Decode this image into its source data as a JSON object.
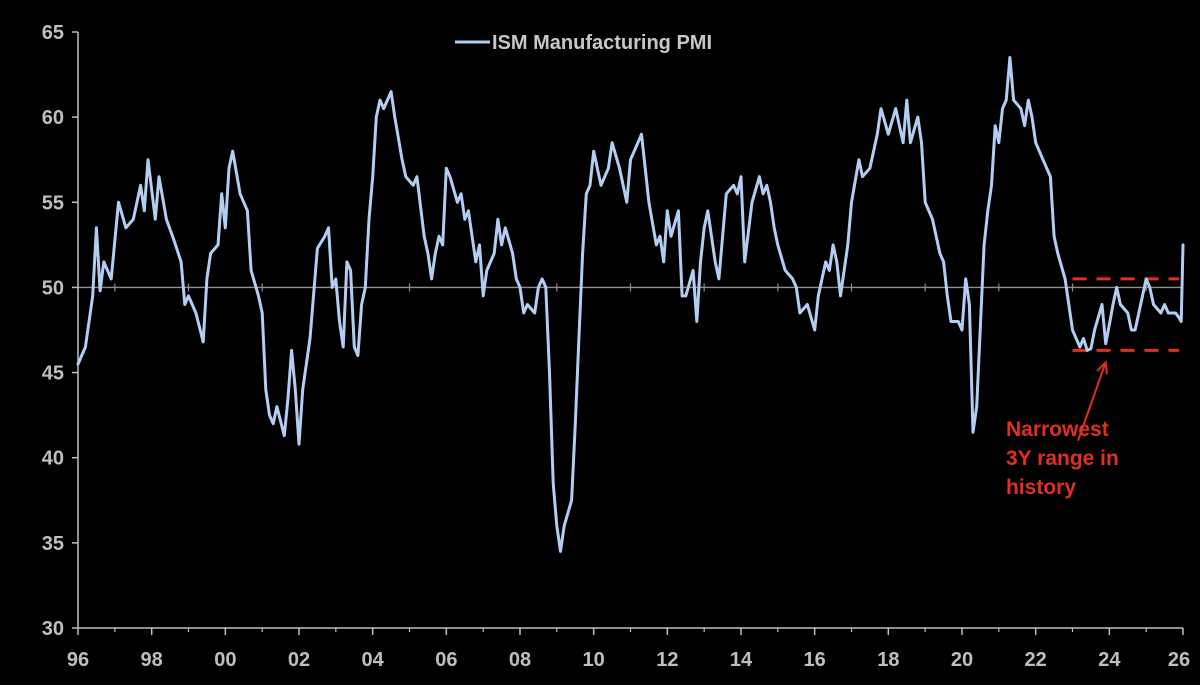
{
  "chart_data": {
    "type": "line",
    "title": "",
    "xlabel": "",
    "ylabel": "",
    "xlim": [
      1996,
      2026
    ],
    "ylim": [
      30,
      65
    ],
    "x_ticks": [
      "96",
      "98",
      "00",
      "02",
      "04",
      "06",
      "08",
      "10",
      "12",
      "14",
      "16",
      "18",
      "20",
      "22",
      "24",
      "26"
    ],
    "y_ticks": [
      "30",
      "35",
      "40",
      "45",
      "50",
      "55",
      "60",
      "65"
    ],
    "reference_line": 50,
    "legend_position": "top-center",
    "series": [
      {
        "name": "ISM Manufacturing PMI",
        "color": "#b4cdf2",
        "points": [
          [
            1996.0,
            45.5
          ],
          [
            1996.2,
            46.5
          ],
          [
            1996.4,
            49.5
          ],
          [
            1996.5,
            53.5
          ],
          [
            1996.6,
            49.8
          ],
          [
            1996.7,
            51.5
          ],
          [
            1996.9,
            50.5
          ],
          [
            1997.1,
            55.0
          ],
          [
            1997.3,
            53.5
          ],
          [
            1997.5,
            54.0
          ],
          [
            1997.7,
            56.0
          ],
          [
            1997.8,
            54.5
          ],
          [
            1997.9,
            57.5
          ],
          [
            1998.1,
            54.0
          ],
          [
            1998.2,
            56.5
          ],
          [
            1998.4,
            54.0
          ],
          [
            1998.6,
            52.8
          ],
          [
            1998.8,
            51.5
          ],
          [
            1998.9,
            49.0
          ],
          [
            1999.0,
            49.5
          ],
          [
            1999.2,
            48.5
          ],
          [
            1999.4,
            46.8
          ],
          [
            1999.5,
            50.5
          ],
          [
            1999.6,
            52.0
          ],
          [
            1999.8,
            52.5
          ],
          [
            1999.9,
            55.5
          ],
          [
            2000.0,
            53.5
          ],
          [
            2000.1,
            57.0
          ],
          [
            2000.2,
            58.0
          ],
          [
            2000.4,
            55.5
          ],
          [
            2000.6,
            54.5
          ],
          [
            2000.7,
            51.0
          ],
          [
            2000.9,
            49.5
          ],
          [
            2001.0,
            48.5
          ],
          [
            2001.1,
            44.0
          ],
          [
            2001.2,
            42.5
          ],
          [
            2001.3,
            42.0
          ],
          [
            2001.4,
            43.0
          ],
          [
            2001.6,
            41.3
          ],
          [
            2001.7,
            43.5
          ],
          [
            2001.8,
            46.3
          ],
          [
            2001.9,
            44.0
          ],
          [
            2002.0,
            40.8
          ],
          [
            2002.1,
            44.0
          ],
          [
            2002.3,
            47.0
          ],
          [
            2002.5,
            52.3
          ],
          [
            2002.7,
            53.0
          ],
          [
            2002.8,
            53.5
          ],
          [
            2002.9,
            50.0
          ],
          [
            2003.0,
            50.5
          ],
          [
            2003.1,
            48.0
          ],
          [
            2003.2,
            46.5
          ],
          [
            2003.3,
            51.5
          ],
          [
            2003.4,
            51.0
          ],
          [
            2003.5,
            46.5
          ],
          [
            2003.6,
            46.0
          ],
          [
            2003.7,
            49.0
          ],
          [
            2003.8,
            50.0
          ],
          [
            2003.9,
            54.0
          ],
          [
            2004.0,
            56.5
          ],
          [
            2004.1,
            60.0
          ],
          [
            2004.2,
            61.0
          ],
          [
            2004.3,
            60.5
          ],
          [
            2004.4,
            61.0
          ],
          [
            2004.5,
            61.5
          ],
          [
            2004.6,
            60.0
          ],
          [
            2004.8,
            57.5
          ],
          [
            2004.9,
            56.5
          ],
          [
            2005.1,
            56.0
          ],
          [
            2005.2,
            56.5
          ],
          [
            2005.4,
            53.0
          ],
          [
            2005.5,
            52.0
          ],
          [
            2005.6,
            50.5
          ],
          [
            2005.7,
            52.0
          ],
          [
            2005.8,
            53.0
          ],
          [
            2005.9,
            52.5
          ],
          [
            2006.0,
            57.0
          ],
          [
            2006.1,
            56.5
          ],
          [
            2006.3,
            55.0
          ],
          [
            2006.4,
            55.5
          ],
          [
            2006.5,
            54.0
          ],
          [
            2006.6,
            54.5
          ],
          [
            2006.8,
            51.5
          ],
          [
            2006.9,
            52.5
          ],
          [
            2007.0,
            49.5
          ],
          [
            2007.1,
            51.0
          ],
          [
            2007.3,
            52.0
          ],
          [
            2007.4,
            54.0
          ],
          [
            2007.5,
            52.5
          ],
          [
            2007.6,
            53.5
          ],
          [
            2007.8,
            52.0
          ],
          [
            2007.9,
            50.5
          ],
          [
            2008.0,
            50.0
          ],
          [
            2008.1,
            48.5
          ],
          [
            2008.2,
            49.0
          ],
          [
            2008.4,
            48.5
          ],
          [
            2008.5,
            50.0
          ],
          [
            2008.6,
            50.5
          ],
          [
            2008.7,
            50.0
          ],
          [
            2008.8,
            45.0
          ],
          [
            2008.9,
            38.5
          ],
          [
            2009.0,
            36.0
          ],
          [
            2009.1,
            34.5
          ],
          [
            2009.2,
            36.0
          ],
          [
            2009.4,
            37.5
          ],
          [
            2009.5,
            42.0
          ],
          [
            2009.6,
            47.0
          ],
          [
            2009.7,
            52.0
          ],
          [
            2009.8,
            55.5
          ],
          [
            2009.9,
            56.0
          ],
          [
            2010.0,
            58.0
          ],
          [
            2010.2,
            56.0
          ],
          [
            2010.4,
            57.0
          ],
          [
            2010.5,
            58.5
          ],
          [
            2010.7,
            57.0
          ],
          [
            2010.9,
            55.0
          ],
          [
            2011.0,
            57.5
          ],
          [
            2011.2,
            58.5
          ],
          [
            2011.3,
            59.0
          ],
          [
            2011.5,
            55.0
          ],
          [
            2011.7,
            52.5
          ],
          [
            2011.8,
            53.0
          ],
          [
            2011.9,
            51.5
          ],
          [
            2012.0,
            54.5
          ],
          [
            2012.1,
            53.0
          ],
          [
            2012.3,
            54.5
          ],
          [
            2012.4,
            49.5
          ],
          [
            2012.5,
            49.5
          ],
          [
            2012.7,
            51.0
          ],
          [
            2012.8,
            48.0
          ],
          [
            2012.9,
            51.5
          ],
          [
            2013.0,
            53.5
          ],
          [
            2013.1,
            54.5
          ],
          [
            2013.3,
            51.5
          ],
          [
            2013.4,
            50.5
          ],
          [
            2013.6,
            55.5
          ],
          [
            2013.8,
            56.0
          ],
          [
            2013.9,
            55.5
          ],
          [
            2014.0,
            56.5
          ],
          [
            2014.1,
            51.5
          ],
          [
            2014.3,
            55.0
          ],
          [
            2014.5,
            56.5
          ],
          [
            2014.6,
            55.5
          ],
          [
            2014.7,
            56.0
          ],
          [
            2014.8,
            55.0
          ],
          [
            2014.9,
            53.5
          ],
          [
            2015.0,
            52.5
          ],
          [
            2015.2,
            51.0
          ],
          [
            2015.4,
            50.5
          ],
          [
            2015.5,
            50.0
          ],
          [
            2015.6,
            48.5
          ],
          [
            2015.8,
            49.0
          ],
          [
            2016.0,
            47.5
          ],
          [
            2016.1,
            49.5
          ],
          [
            2016.3,
            51.5
          ],
          [
            2016.4,
            51.0
          ],
          [
            2016.5,
            52.5
          ],
          [
            2016.6,
            51.5
          ],
          [
            2016.7,
            49.5
          ],
          [
            2016.9,
            52.5
          ],
          [
            2017.0,
            55.0
          ],
          [
            2017.2,
            57.5
          ],
          [
            2017.3,
            56.5
          ],
          [
            2017.5,
            57.0
          ],
          [
            2017.7,
            59.0
          ],
          [
            2017.8,
            60.5
          ],
          [
            2018.0,
            59.0
          ],
          [
            2018.2,
            60.5
          ],
          [
            2018.4,
            58.5
          ],
          [
            2018.5,
            61.0
          ],
          [
            2018.6,
            58.5
          ],
          [
            2018.8,
            60.0
          ],
          [
            2018.9,
            58.5
          ],
          [
            2019.0,
            55.0
          ],
          [
            2019.2,
            54.0
          ],
          [
            2019.4,
            52.0
          ],
          [
            2019.5,
            51.5
          ],
          [
            2019.6,
            49.5
          ],
          [
            2019.7,
            48.0
          ],
          [
            2019.9,
            48.0
          ],
          [
            2020.0,
            47.5
          ],
          [
            2020.1,
            50.5
          ],
          [
            2020.2,
            49.0
          ],
          [
            2020.3,
            41.5
          ],
          [
            2020.4,
            43.0
          ],
          [
            2020.6,
            52.5
          ],
          [
            2020.7,
            54.5
          ],
          [
            2020.8,
            56.0
          ],
          [
            2020.9,
            59.5
          ],
          [
            2021.0,
            58.5
          ],
          [
            2021.1,
            60.5
          ],
          [
            2021.2,
            61.0
          ],
          [
            2021.3,
            63.5
          ],
          [
            2021.4,
            61.0
          ],
          [
            2021.6,
            60.5
          ],
          [
            2021.7,
            59.5
          ],
          [
            2021.8,
            61.0
          ],
          [
            2021.9,
            60.0
          ],
          [
            2022.0,
            58.5
          ],
          [
            2022.2,
            57.5
          ],
          [
            2022.4,
            56.5
          ],
          [
            2022.5,
            53.0
          ],
          [
            2022.6,
            52.0
          ],
          [
            2022.8,
            50.5
          ],
          [
            2022.9,
            49.0
          ],
          [
            2023.0,
            47.5
          ],
          [
            2023.1,
            47.0
          ],
          [
            2023.2,
            46.5
          ],
          [
            2023.3,
            47.0
          ],
          [
            2023.4,
            46.3
          ],
          [
            2023.5,
            46.4
          ],
          [
            2023.6,
            47.5
          ],
          [
            2023.8,
            49.0
          ],
          [
            2023.9,
            46.7
          ],
          [
            2024.0,
            47.8
          ],
          [
            2024.1,
            49.0
          ],
          [
            2024.2,
            50.0
          ],
          [
            2024.3,
            49.0
          ],
          [
            2024.5,
            48.5
          ],
          [
            2024.6,
            47.5
          ],
          [
            2024.7,
            47.5
          ],
          [
            2024.8,
            48.5
          ],
          [
            2024.9,
            49.5
          ],
          [
            2025.0,
            50.5
          ],
          [
            2025.1,
            50.0
          ],
          [
            2025.2,
            49.0
          ],
          [
            2025.4,
            48.5
          ],
          [
            2025.5,
            49.0
          ],
          [
            2025.6,
            48.5
          ],
          [
            2025.8,
            48.5
          ],
          [
            2025.9,
            48.2
          ],
          [
            2025.95,
            48.0
          ],
          [
            2026.0,
            52.5
          ]
        ]
      }
    ],
    "range_band": {
      "x_start": 2023.0,
      "x_end": 2026.0,
      "upper": 50.5,
      "lower": 46.3,
      "color": "#e0301e"
    },
    "annotation": {
      "lines": [
        "Narrowest",
        "3Y range in",
        "history"
      ],
      "color": "#e0301e",
      "arrow_target": [
        2023.9,
        46.3
      ],
      "arrow_from": [
        2023.15,
        41.0
      ]
    }
  }
}
